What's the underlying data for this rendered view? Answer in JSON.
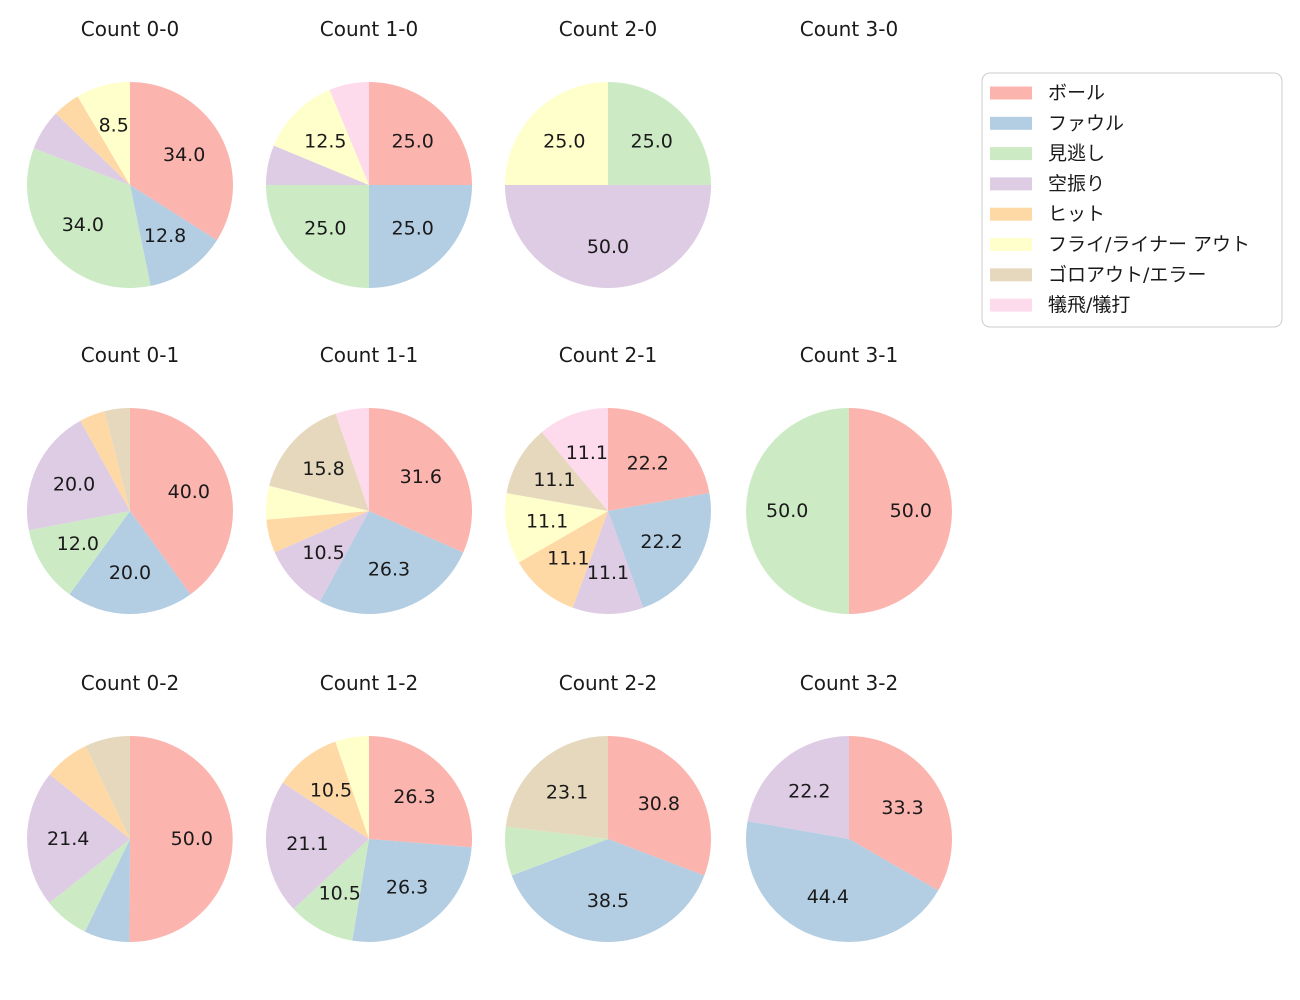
{
  "figure": {
    "background": "#ffffff",
    "text_color": "#1a1a1a"
  },
  "legend": {
    "position": "top-right",
    "entries": [
      {
        "key": "ball",
        "label": "ボール",
        "color": "#fbb4ae"
      },
      {
        "key": "foul",
        "label": "ファウル",
        "color": "#b3cde3"
      },
      {
        "key": "called-strike",
        "label": "見逃し",
        "color": "#ccebc5"
      },
      {
        "key": "swinging-strike",
        "label": "空振り",
        "color": "#decbe4"
      },
      {
        "key": "hit",
        "label": "ヒット",
        "color": "#fed9a6"
      },
      {
        "key": "fly-liner-out",
        "label": "フライ/ライナー アウト",
        "color": "#ffffcc"
      },
      {
        "key": "ground-out-error",
        "label": "ゴロアウト/エラー",
        "color": "#e5d8bd"
      },
      {
        "key": "sac-fly-bunt",
        "label": "犠飛/犠打",
        "color": "#fddaec"
      }
    ]
  },
  "chart_data": [
    {
      "type": "pie",
      "title": "Count 0-0",
      "row": 0,
      "col": 0,
      "start_angle_deg": 90,
      "direction": "clockwise",
      "slices": [
        {
          "category": "ボール",
          "value": 34.0,
          "label": "34.0"
        },
        {
          "category": "ファウル",
          "value": 12.8,
          "label": "12.8"
        },
        {
          "category": "見逃し",
          "value": 34.0,
          "label": "34.0"
        },
        {
          "category": "空振り",
          "value": 6.4,
          "label": null
        },
        {
          "category": "ヒット",
          "value": 4.3,
          "label": null
        },
        {
          "category": "フライ/ライナー アウト",
          "value": 8.5,
          "label": "8.5"
        }
      ]
    },
    {
      "type": "pie",
      "title": "Count 1-0",
      "row": 0,
      "col": 1,
      "start_angle_deg": 90,
      "direction": "clockwise",
      "slices": [
        {
          "category": "ボール",
          "value": 25.0,
          "label": "25.0"
        },
        {
          "category": "ファウル",
          "value": 25.0,
          "label": "25.0"
        },
        {
          "category": "見逃し",
          "value": 25.0,
          "label": "25.0"
        },
        {
          "category": "空振り",
          "value": 6.25,
          "label": null
        },
        {
          "category": "フライ/ライナー アウト",
          "value": 12.5,
          "label": "12.5"
        },
        {
          "category": "犠飛/犠打",
          "value": 6.25,
          "label": null
        }
      ]
    },
    {
      "type": "pie",
      "title": "Count 2-0",
      "row": 0,
      "col": 2,
      "start_angle_deg": 90,
      "direction": "clockwise",
      "slices": [
        {
          "category": "見逃し",
          "value": 25.0,
          "label": "25.0"
        },
        {
          "category": "空振り",
          "value": 50.0,
          "label": "50.0"
        },
        {
          "category": "フライ/ライナー アウト",
          "value": 25.0,
          "label": "25.0"
        }
      ]
    },
    {
      "type": "pie",
      "title": "Count 3-0",
      "row": 0,
      "col": 3,
      "start_angle_deg": 90,
      "direction": "clockwise",
      "slices": []
    },
    {
      "type": "pie",
      "title": "Count 0-1",
      "row": 1,
      "col": 0,
      "start_angle_deg": 90,
      "direction": "clockwise",
      "slices": [
        {
          "category": "ボール",
          "value": 40.0,
          "label": "40.0"
        },
        {
          "category": "ファウル",
          "value": 20.0,
          "label": "20.0"
        },
        {
          "category": "見逃し",
          "value": 12.0,
          "label": "12.0"
        },
        {
          "category": "空振り",
          "value": 20.0,
          "label": "20.0"
        },
        {
          "category": "ヒット",
          "value": 4.0,
          "label": null
        },
        {
          "category": "ゴロアウト/エラー",
          "value": 4.0,
          "label": null
        }
      ]
    },
    {
      "type": "pie",
      "title": "Count 1-1",
      "row": 1,
      "col": 1,
      "start_angle_deg": 90,
      "direction": "clockwise",
      "slices": [
        {
          "category": "ボール",
          "value": 31.6,
          "label": "31.6"
        },
        {
          "category": "ファウル",
          "value": 26.3,
          "label": "26.3"
        },
        {
          "category": "空振り",
          "value": 10.5,
          "label": "10.5"
        },
        {
          "category": "ヒット",
          "value": 5.26,
          "label": null
        },
        {
          "category": "フライ/ライナー アウト",
          "value": 5.26,
          "label": null
        },
        {
          "category": "ゴロアウト/エラー",
          "value": 15.8,
          "label": "15.8"
        },
        {
          "category": "犠飛/犠打",
          "value": 5.26,
          "label": null
        }
      ]
    },
    {
      "type": "pie",
      "title": "Count 2-1",
      "row": 1,
      "col": 2,
      "start_angle_deg": 90,
      "direction": "clockwise",
      "slices": [
        {
          "category": "ボール",
          "value": 22.2,
          "label": "22.2"
        },
        {
          "category": "ファウル",
          "value": 22.2,
          "label": "22.2"
        },
        {
          "category": "空振り",
          "value": 11.1,
          "label": "11.1"
        },
        {
          "category": "ヒット",
          "value": 11.1,
          "label": "11.1"
        },
        {
          "category": "フライ/ライナー アウト",
          "value": 11.1,
          "label": "11.1"
        },
        {
          "category": "ゴロアウト/エラー",
          "value": 11.1,
          "label": "11.1"
        },
        {
          "category": "犠飛/犠打",
          "value": 11.1,
          "label": "11.1"
        }
      ]
    },
    {
      "type": "pie",
      "title": "Count 3-1",
      "row": 1,
      "col": 3,
      "start_angle_deg": 90,
      "direction": "clockwise",
      "slices": [
        {
          "category": "ボール",
          "value": 50.0,
          "label": "50.0"
        },
        {
          "category": "見逃し",
          "value": 50.0,
          "label": "50.0"
        }
      ]
    },
    {
      "type": "pie",
      "title": "Count 0-2",
      "row": 2,
      "col": 0,
      "start_angle_deg": 90,
      "direction": "clockwise",
      "slices": [
        {
          "category": "ボール",
          "value": 50.0,
          "label": "50.0"
        },
        {
          "category": "ファウル",
          "value": 7.1,
          "label": null
        },
        {
          "category": "見逃し",
          "value": 7.1,
          "label": null
        },
        {
          "category": "空振り",
          "value": 21.4,
          "label": "21.4"
        },
        {
          "category": "ヒット",
          "value": 7.1,
          "label": null
        },
        {
          "category": "ゴロアウト/エラー",
          "value": 7.1,
          "label": null
        }
      ]
    },
    {
      "type": "pie",
      "title": "Count 1-2",
      "row": 2,
      "col": 1,
      "start_angle_deg": 90,
      "direction": "clockwise",
      "slices": [
        {
          "category": "ボール",
          "value": 26.3,
          "label": "26.3"
        },
        {
          "category": "ファウル",
          "value": 26.3,
          "label": "26.3"
        },
        {
          "category": "見逃し",
          "value": 10.5,
          "label": "10.5"
        },
        {
          "category": "空振り",
          "value": 21.1,
          "label": "21.1"
        },
        {
          "category": "ヒット",
          "value": 10.5,
          "label": "10.5"
        },
        {
          "category": "フライ/ライナー アウト",
          "value": 5.3,
          "label": null
        }
      ]
    },
    {
      "type": "pie",
      "title": "Count 2-2",
      "row": 2,
      "col": 2,
      "start_angle_deg": 90,
      "direction": "clockwise",
      "slices": [
        {
          "category": "ボール",
          "value": 30.8,
          "label": "30.8"
        },
        {
          "category": "ファウル",
          "value": 38.5,
          "label": "38.5"
        },
        {
          "category": "見逃し",
          "value": 7.7,
          "label": null
        },
        {
          "category": "ゴロアウト/エラー",
          "value": 23.1,
          "label": "23.1"
        }
      ]
    },
    {
      "type": "pie",
      "title": "Count 3-2",
      "row": 2,
      "col": 3,
      "start_angle_deg": 90,
      "direction": "clockwise",
      "slices": [
        {
          "category": "ボール",
          "value": 33.3,
          "label": "33.3"
        },
        {
          "category": "ファウル",
          "value": 44.4,
          "label": "44.4"
        },
        {
          "category": "空振り",
          "value": 22.2,
          "label": "22.2"
        }
      ]
    }
  ]
}
